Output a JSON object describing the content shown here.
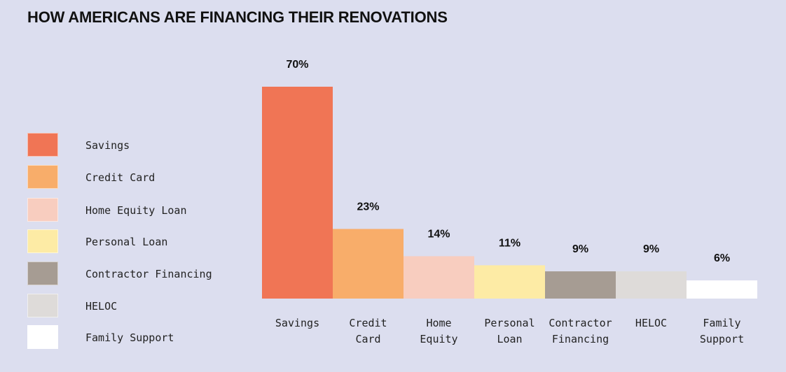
{
  "title": "HOW AMERICANS ARE FINANCING THEIR RENOVATIONS",
  "legend": [
    {
      "label": "Savings",
      "color": "#f07555"
    },
    {
      "label": "Credit Card",
      "color": "#f8ad6a"
    },
    {
      "label": "Home Equity Loan",
      "color": "#f8cdbf"
    },
    {
      "label": "Personal Loan",
      "color": "#fdeba5"
    },
    {
      "label": "Contractor Financing",
      "color": "#a69c93"
    },
    {
      "label": "HELOC",
      "color": "#dedbd9"
    },
    {
      "label": "Family Support",
      "color": "#ffffff"
    }
  ],
  "chart_data": {
    "type": "bar",
    "title": "HOW AMERICANS ARE FINANCING THEIR RENOVATIONS",
    "categories": [
      [
        "Savings"
      ],
      [
        "Credit",
        "Card"
      ],
      [
        "Home",
        "Equity"
      ],
      [
        "Personal",
        "Loan"
      ],
      [
        "Contractor",
        "Financing"
      ],
      [
        "HELOC"
      ],
      [
        "Family",
        "Support"
      ]
    ],
    "values": [
      70,
      23,
      14,
      11,
      9,
      9,
      6
    ],
    "value_labels": [
      "70%",
      "23%",
      "14%",
      "11%",
      "9%",
      "9%",
      "6%"
    ],
    "colors": [
      "#f07555",
      "#f8ad6a",
      "#f8cdbf",
      "#fdeba5",
      "#a69c93",
      "#dedbd9",
      "#ffffff"
    ],
    "xlabel": "",
    "ylabel": "",
    "ylim": [
      0,
      70
    ],
    "grid": false,
    "legend_position": "left"
  }
}
